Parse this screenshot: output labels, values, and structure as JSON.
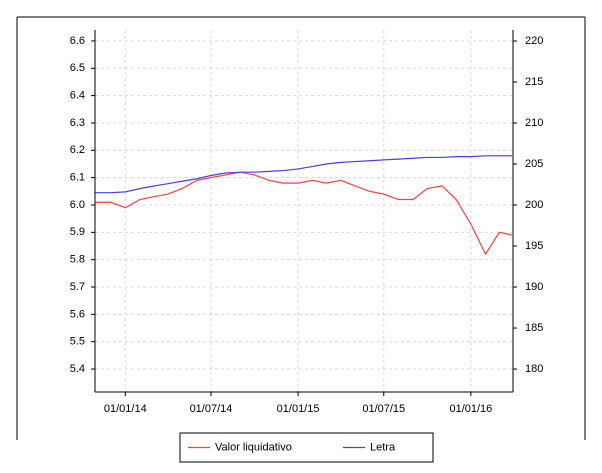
{
  "chart_data": {
    "type": "line",
    "x": [
      "2013-10-30",
      "2013-12-01",
      "2014-01-01",
      "2014-02-01",
      "2014-03-01",
      "2014-04-01",
      "2014-05-01",
      "2014-06-01",
      "2014-07-01",
      "2014-08-01",
      "2014-09-01",
      "2014-10-01",
      "2014-11-01",
      "2014-12-01",
      "2015-01-01",
      "2015-02-01",
      "2015-03-01",
      "2015-04-01",
      "2015-05-01",
      "2015-06-01",
      "2015-07-01",
      "2015-08-01",
      "2015-09-01",
      "2015-10-01",
      "2015-11-01",
      "2015-12-01",
      "2016-01-01",
      "2016-02-01",
      "2016-03-01",
      "2016-03-28"
    ],
    "series": [
      {
        "name": "Valor liquidativo",
        "color": "#ff4040",
        "axis": "y",
        "values": [
          6.01,
          6.01,
          5.99,
          6.02,
          6.03,
          6.04,
          6.06,
          6.09,
          6.1,
          6.11,
          6.12,
          6.11,
          6.09,
          6.08,
          6.08,
          6.09,
          6.08,
          6.09,
          6.07,
          6.05,
          6.04,
          6.02,
          6.02,
          6.06,
          6.07,
          6.02,
          5.93,
          5.82,
          5.9,
          5.89
        ]
      },
      {
        "name": "Letra",
        "color": "#4040ff",
        "axis": "y2",
        "values": [
          201.5,
          201.5,
          201.6,
          202.0,
          202.3,
          202.6,
          202.9,
          203.2,
          203.6,
          203.9,
          204.0,
          204.0,
          204.1,
          204.2,
          204.4,
          204.7,
          205.0,
          205.2,
          205.3,
          205.4,
          205.5,
          205.6,
          205.7,
          205.8,
          205.8,
          205.9,
          205.9,
          206.0,
          206.0,
          206.0
        ]
      }
    ],
    "xlim": [
      "2013-10-29",
      "2016-03-30"
    ],
    "xticks": [
      {
        "value": "2014-01-01",
        "label": "01/01/14"
      },
      {
        "value": "2014-07-01",
        "label": "01/07/14"
      },
      {
        "value": "2015-01-01",
        "label": "01/01/15"
      },
      {
        "value": "2015-07-01",
        "label": "01/07/15"
      },
      {
        "value": "2016-01-01",
        "label": "01/01/16"
      }
    ],
    "ylim": [
      5.316,
      6.64
    ],
    "yticks": [
      {
        "value": 5.4,
        "label": "5.4"
      },
      {
        "value": 5.5,
        "label": "5.5"
      },
      {
        "value": 5.6,
        "label": "5.6"
      },
      {
        "value": 5.7,
        "label": "5.7"
      },
      {
        "value": 5.8,
        "label": "5.8"
      },
      {
        "value": 5.9,
        "label": "5.9"
      },
      {
        "value": 6,
        "label": "6.0"
      },
      {
        "value": 6.1,
        "label": "6.1"
      },
      {
        "value": 6.2,
        "label": "6.2"
      },
      {
        "value": 6.3,
        "label": "6.3"
      },
      {
        "value": 6.4,
        "label": "6.4"
      },
      {
        "value": 6.5,
        "label": "6.5"
      },
      {
        "value": 6.6,
        "label": "6.6"
      }
    ],
    "y2lim": [
      177.2,
      221.34
    ],
    "y2ticks": [
      180,
      185,
      190,
      195,
      200,
      205,
      210,
      215,
      220
    ],
    "grid": true,
    "legend": "bottom"
  }
}
